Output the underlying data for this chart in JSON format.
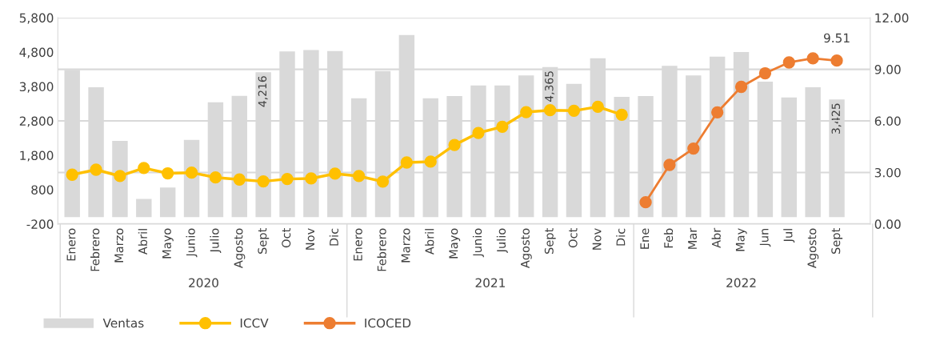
{
  "chart_data": {
    "type": "bar",
    "categories": [
      "Enero",
      "Febrero",
      "Marzo",
      "Abril",
      "Mayo",
      "Junio",
      "Julio",
      "Agosto",
      "Sept",
      "Oct",
      "Nov",
      "Dic",
      "Enero",
      "Febrero",
      "Marzo",
      "Abril",
      "Mayo",
      "Junio",
      "Julio",
      "Agosto",
      "Sept",
      "Oct",
      "Nov",
      "Dic",
      "Ene",
      "Feb",
      "Mar",
      "Abr",
      "May",
      "Jun",
      "Jul",
      "Agosto",
      "Sept"
    ],
    "series": [
      {
        "name": "Ventas",
        "color": "#d9d9d9",
        "values": [
          4280,
          3780,
          2220,
          530,
          860,
          2250,
          3340,
          3530,
          4216,
          4820,
          4860,
          4830,
          3460,
          4250,
          5300,
          3460,
          3520,
          3830,
          3830,
          4120,
          4365,
          3880,
          4620,
          3500,
          3520,
          4400,
          4120,
          4670,
          4800,
          3940,
          3480,
          3780,
          3425
        ],
        "value_labels": [
          null,
          null,
          null,
          null,
          null,
          null,
          null,
          null,
          "4,216",
          null,
          null,
          null,
          null,
          null,
          null,
          null,
          null,
          null,
          null,
          null,
          "4,365",
          null,
          null,
          null,
          null,
          null,
          null,
          null,
          null,
          null,
          null,
          null,
          "3,425"
        ]
      },
      {
        "name": "ICCV",
        "type": "line",
        "axis": "y2",
        "color": "#ffc000",
        "values": [
          2.87,
          3.16,
          2.79,
          3.26,
          2.95,
          2.99,
          2.71,
          2.59,
          2.48,
          2.62,
          2.65,
          2.93,
          2.79,
          2.47,
          3.58,
          3.63,
          4.6,
          5.3,
          5.66,
          6.51,
          6.62,
          6.59,
          6.82,
          6.36,
          null,
          null,
          null,
          null,
          null,
          null,
          null,
          null,
          null
        ]
      },
      {
        "name": "ICOCED",
        "type": "line",
        "axis": "y2",
        "color": "#ed7d31",
        "values": [
          null,
          null,
          null,
          null,
          null,
          null,
          null,
          null,
          null,
          null,
          null,
          null,
          null,
          null,
          null,
          null,
          null,
          null,
          null,
          null,
          null,
          null,
          null,
          null,
          1.27,
          3.44,
          4.39,
          6.5,
          7.98,
          8.77,
          9.4,
          9.64,
          9.51
        ],
        "value_labels": [
          null,
          null,
          null,
          null,
          null,
          null,
          null,
          null,
          null,
          null,
          null,
          null,
          null,
          null,
          null,
          null,
          null,
          null,
          null,
          null,
          null,
          null,
          null,
          null,
          null,
          null,
          null,
          null,
          null,
          null,
          null,
          null,
          "9.51"
        ]
      }
    ],
    "ylim": [
      -200,
      5800
    ],
    "yticks": [
      {
        "value": -200,
        "label": "-200"
      },
      {
        "value": 800,
        "label": "800"
      },
      {
        "value": 1800,
        "label": "1,800"
      },
      {
        "value": 2800,
        "label": "2,800"
      },
      {
        "value": 3800,
        "label": "3,800"
      },
      {
        "value": 4800,
        "label": "4,800"
      },
      {
        "value": 5800,
        "label": "5,800"
      }
    ],
    "y2lim": [
      0,
      12
    ],
    "y2ticks": [
      {
        "value": 0,
        "label": "0.00"
      },
      {
        "value": 3,
        "label": "3.00"
      },
      {
        "value": 6,
        "label": "6.00"
      },
      {
        "value": 9,
        "label": "9.00"
      },
      {
        "value": 12,
        "label": "12.00"
      }
    ],
    "annotations": [
      "2020",
      "2021",
      "2022"
    ],
    "grid": "y2",
    "marker": "circle",
    "legend": "bottom left"
  }
}
